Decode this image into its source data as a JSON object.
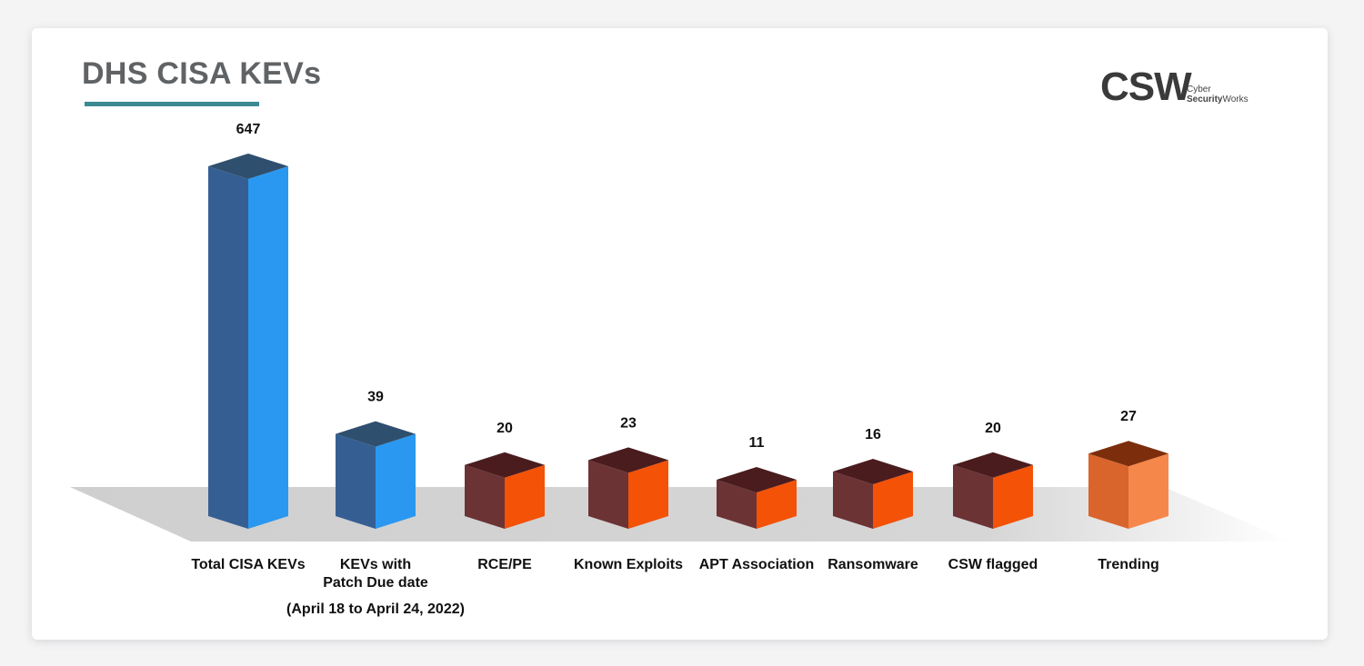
{
  "header": {
    "title": "DHS CISA KEVs",
    "logo_mark": "CSW",
    "logo_line1": "Cyber",
    "logo_line2_bold": "Security",
    "logo_line2_rest": "Works"
  },
  "chart_data": {
    "type": "bar",
    "title": "DHS CISA KEVs",
    "categories": [
      "Total CISA KEVs",
      "KEVs with Patch Due date",
      "RCE/PE",
      "Known Exploits",
      "APT Association",
      "Ransomware",
      "CSW flagged",
      "Trending"
    ],
    "category_lines": [
      [
        "Total CISA KEVs"
      ],
      [
        "KEVs with",
        "Patch Due date"
      ],
      [
        "RCE/PE"
      ],
      [
        "Known Exploits"
      ],
      [
        "APT Association"
      ],
      [
        "Ransomware"
      ],
      [
        "CSW flagged"
      ],
      [
        "Trending"
      ]
    ],
    "values": [
      647,
      39,
      20,
      23,
      11,
      16,
      20,
      27
    ],
    "data_labels": [
      "647",
      "39",
      "20",
      "23",
      "11",
      "16",
      "20",
      "27"
    ],
    "footnote": "(April 18 to April 24, 2022)",
    "xlabel": "",
    "ylabel": "",
    "grid": false,
    "legend": "none",
    "style": "3d-columns",
    "colors": {
      "blue_front": "#2a98f0",
      "blue_side": "#355f93",
      "blue_top": "#2f4f6e",
      "red_front": "#f35207",
      "red_side": "#6c3335",
      "red_top": "#4a1c1e",
      "orange_front": "#f6874a",
      "orange_side": "#d9652c",
      "orange_top": "#7c2e0c",
      "floor": "#d3d3d3"
    },
    "bar_color_groups": [
      "blue",
      "blue",
      "red",
      "red",
      "red",
      "red",
      "red",
      "orange"
    ]
  }
}
